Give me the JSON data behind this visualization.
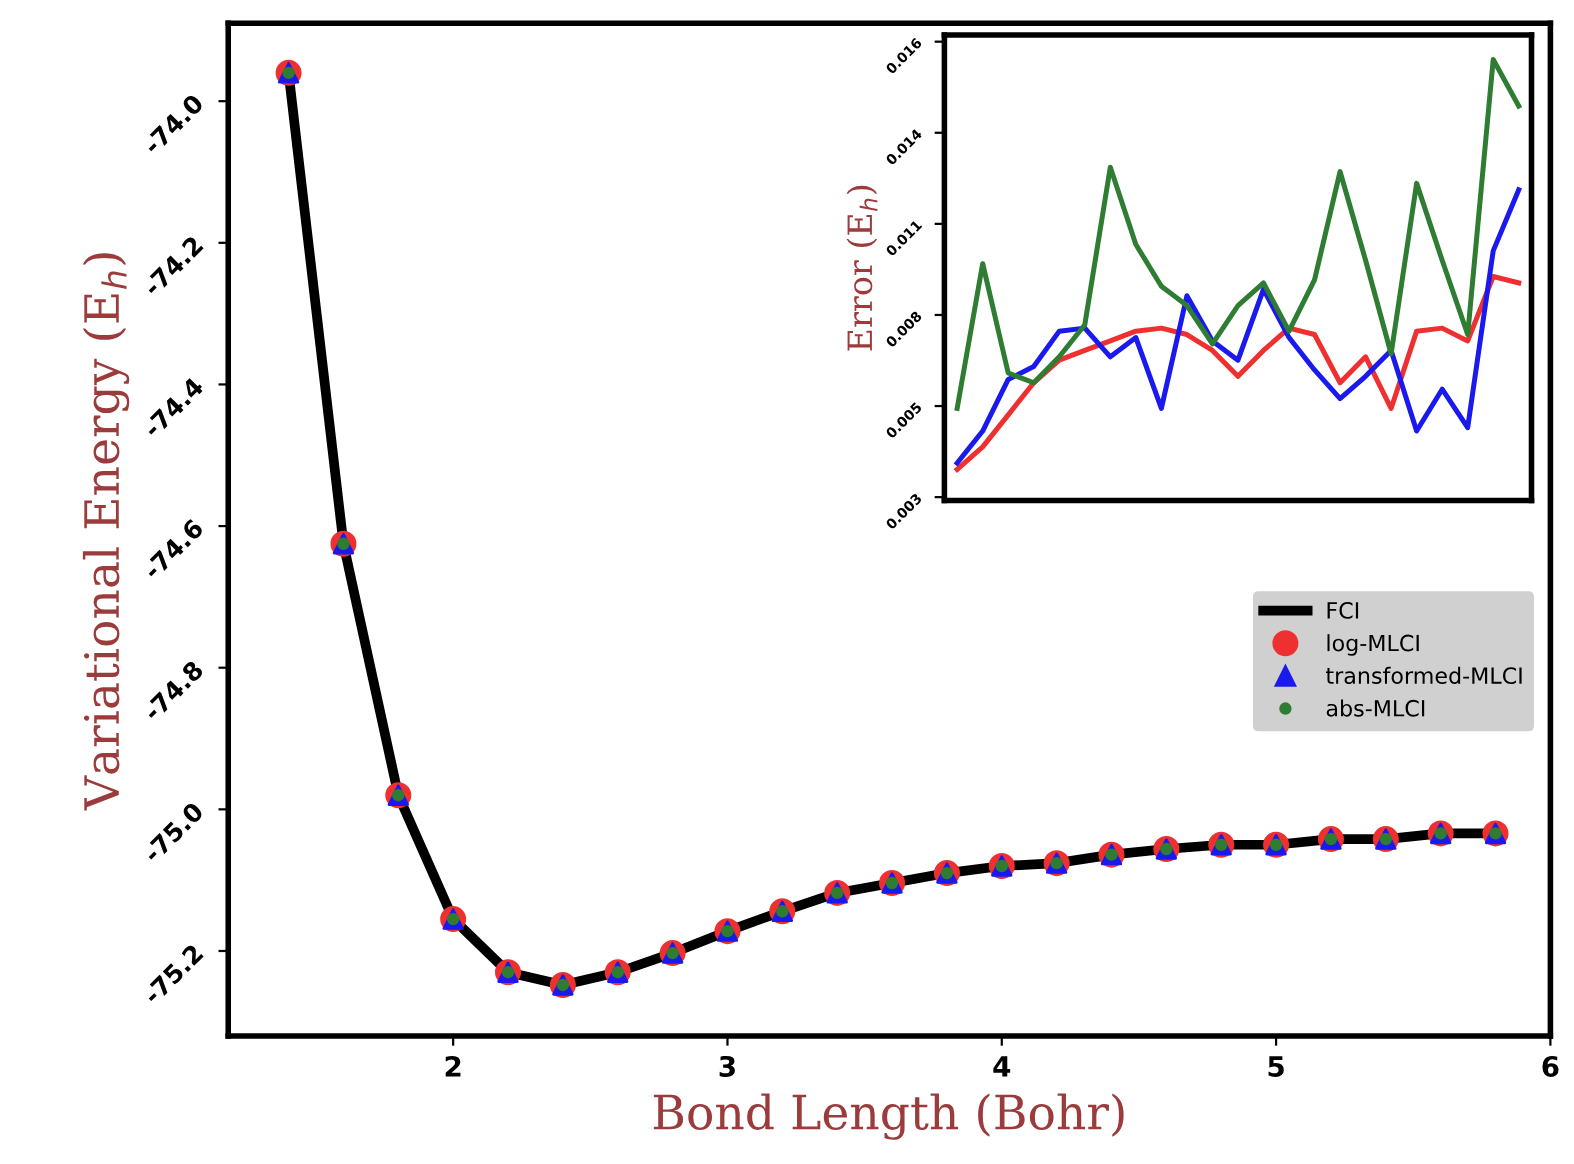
{
  "chart_data": [
    {
      "type": "line",
      "xlabel": "Bond Length (Bohr)",
      "ylabel": "Variational Energy (E$_{h}$)",
      "x": [
        1.4,
        1.6,
        1.8,
        2.0,
        2.2,
        2.4,
        2.6,
        2.8,
        3.0,
        3.2,
        3.4,
        3.6,
        3.8,
        4.0,
        4.2,
        4.4,
        4.6,
        4.8,
        5.0,
        5.2,
        5.4,
        5.6,
        5.8
      ],
      "series": [
        {
          "name": "FCI",
          "type": "line",
          "color": "#000000",
          "marker": "none",
          "values": [
            -73.96,
            -74.625,
            -74.98,
            -75.155,
            -75.23,
            -75.248,
            -75.23,
            -75.203,
            -75.172,
            -75.144,
            -75.118,
            -75.104,
            -75.09,
            -75.08,
            -75.076,
            -75.064,
            -75.056,
            -75.05,
            -75.05,
            -75.042,
            -75.042,
            -75.034,
            -75.034
          ]
        },
        {
          "name": "log-MLCI",
          "type": "scatter",
          "color": "#ee3030",
          "marker": "circle",
          "values": [
            -73.96,
            -74.625,
            -74.98,
            -75.155,
            -75.23,
            -75.248,
            -75.23,
            -75.203,
            -75.172,
            -75.144,
            -75.118,
            -75.104,
            -75.09,
            -75.08,
            -75.076,
            -75.064,
            -75.056,
            -75.05,
            -75.05,
            -75.042,
            -75.042,
            -75.034,
            -75.034
          ]
        },
        {
          "name": "transformed-MLCI",
          "type": "scatter",
          "color": "#1a1aee",
          "marker": "triangle",
          "values": [
            -73.96,
            -74.625,
            -74.98,
            -75.155,
            -75.23,
            -75.248,
            -75.23,
            -75.203,
            -75.172,
            -75.144,
            -75.118,
            -75.104,
            -75.09,
            -75.08,
            -75.076,
            -75.064,
            -75.056,
            -75.05,
            -75.05,
            -75.042,
            -75.042,
            -75.034,
            -75.034
          ]
        },
        {
          "name": "abs-MLCI",
          "type": "scatter",
          "color": "#2e7d32",
          "marker": "circle",
          "values": [
            -73.96,
            -74.625,
            -74.98,
            -75.155,
            -75.23,
            -75.248,
            -75.23,
            -75.203,
            -75.172,
            -75.144,
            -75.118,
            -75.104,
            -75.09,
            -75.08,
            -75.076,
            -75.064,
            -75.056,
            -75.05,
            -75.05,
            -75.042,
            -75.042,
            -75.034,
            -75.034
          ]
        }
      ],
      "xlim": [
        1.18,
        6
      ],
      "ylim": [
        -75.32,
        -73.89
      ],
      "xticks": [
        2,
        3,
        4,
        5,
        6
      ],
      "yticks": [
        -75.2,
        {
          "value": -75.0,
          "label": "-75.0"
        },
        -74.8,
        -74.6,
        -74.4,
        -74.2,
        {
          "value": -74.0,
          "label": "-74.0"
        }
      ],
      "grid": false,
      "legend": "right"
    },
    {
      "type": "line",
      "ylabel": "Error (E$_{h}$)",
      "categories": [
        null,
        null,
        null,
        null,
        null,
        null,
        null,
        null,
        null,
        null,
        null,
        null,
        null,
        null,
        null,
        null,
        null,
        null,
        null,
        null,
        null,
        null,
        null
      ],
      "series": [
        {
          "color": "#ee3030",
          "values": [
            0.00352,
            0.00419,
            0.00514,
            0.00609,
            0.00676,
            0.00705,
            0.00733,
            0.00762,
            0.00771,
            0.00752,
            0.00705,
            0.00628,
            0.00705,
            0.00771,
            0.00752,
            0.00609,
            0.00686,
            0.00533,
            0.00762,
            0.00771,
            0.00733,
            0.00924,
            0.00905
          ]
        },
        {
          "color": "#1a1aee",
          "values": [
            0.00371,
            0.00466,
            0.00619,
            0.00657,
            0.00762,
            0.00771,
            0.00686,
            0.00743,
            0.00533,
            0.00867,
            0.00733,
            0.00676,
            0.00886,
            0.00743,
            0.00647,
            0.00562,
            0.00628,
            0.00705,
            0.00466,
            0.0059,
            0.00476,
            0.01,
            0.01181
          ]
        },
        {
          "color": "#2e7d32",
          "values": [
            0.00533,
            0.00962,
            0.00638,
            0.00609,
            0.00686,
            0.00781,
            0.01248,
            0.01019,
            0.00895,
            0.00838,
            0.00724,
            0.00838,
            0.00905,
            0.00762,
            0.00914,
            0.01235,
            0.00972,
            0.00695,
            0.012,
            0.00972,
            0.00752,
            0.01567,
            0.01429
          ]
        }
      ],
      "ylim": [
        0.0026,
        0.0164
      ],
      "yticks": [
        {
          "value": 0.0027,
          "label": "0.003"
        },
        {
          "value": 0.0054,
          "label": "0.005"
        },
        {
          "value": 0.0081,
          "label": "0.008"
        },
        {
          "value": 0.0108,
          "label": "0.011"
        },
        {
          "value": 0.0135,
          "label": "0.014"
        },
        {
          "value": 0.0162,
          "label": "0.016"
        }
      ],
      "tick_labels": "y",
      "grid": false,
      "legend": false
    }
  ]
}
